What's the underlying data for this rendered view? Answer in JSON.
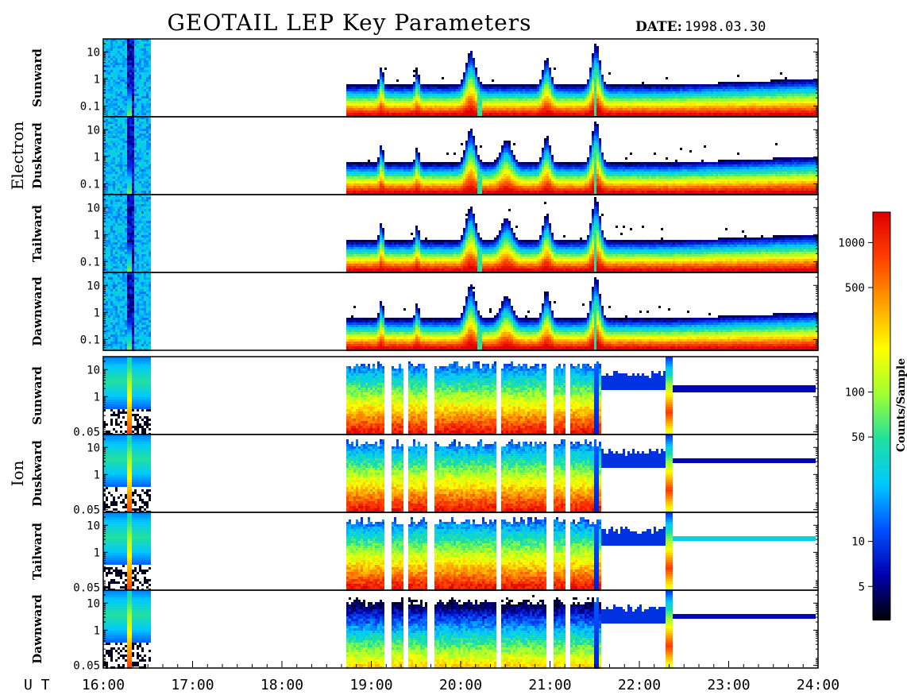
{
  "title": "GEOTAIL LEP Key Parameters",
  "date_label": "DATE:",
  "date_value": "1998.03.30",
  "ut_label": "U T",
  "colorbar": {
    "label": "Counts/Sample",
    "ticks": [
      "1000",
      "500",
      "100",
      "50",
      "10",
      "5"
    ],
    "tick_values": [
      1000,
      500,
      100,
      50,
      10,
      5
    ],
    "range": [
      3,
      1600
    ],
    "scale": "log",
    "colors": [
      "#000000",
      "#0000b0",
      "#0050ff",
      "#00c8ff",
      "#20e0a0",
      "#a0ff30",
      "#ffff00",
      "#ffa000",
      "#ff4000",
      "#e00000"
    ]
  },
  "chart_data": {
    "type": "heatmap",
    "title": "GEOTAIL LEP Key Parameters",
    "date": "1998.03.30",
    "xlabel": "U T",
    "x_tick_labels": [
      "16:00",
      "17:00",
      "18:00",
      "19:00",
      "20:00",
      "21:00",
      "22:00",
      "23:00",
      "24:00"
    ],
    "x_range_hours": [
      16,
      24
    ],
    "data_coverage_hours": [
      [
        16.0,
        16.52
      ],
      [
        18.72,
        24.0
      ]
    ],
    "electron": {
      "group_label": "Electron",
      "y_scale": "log",
      "y_tick_labels": [
        "10",
        "1",
        "0.1"
      ],
      "y_tick_values": [
        10,
        1,
        0.1
      ],
      "y_range": [
        0.04,
        30
      ],
      "panels": [
        {
          "label": "Sunward"
        },
        {
          "label": "Duskward"
        },
        {
          "label": "Tailward"
        },
        {
          "label": "Dawnward"
        }
      ]
    },
    "ion": {
      "group_label": "Ion",
      "y_scale": "log",
      "y_tick_labels": [
        "10",
        "1",
        "0.05"
      ],
      "y_tick_values": [
        10,
        1,
        0.05
      ],
      "y_range": [
        0.04,
        30
      ],
      "panels": [
        {
          "label": "Sunward"
        },
        {
          "label": "Duskward"
        },
        {
          "label": "Tailward"
        },
        {
          "label": "Dawnward"
        }
      ]
    }
  }
}
